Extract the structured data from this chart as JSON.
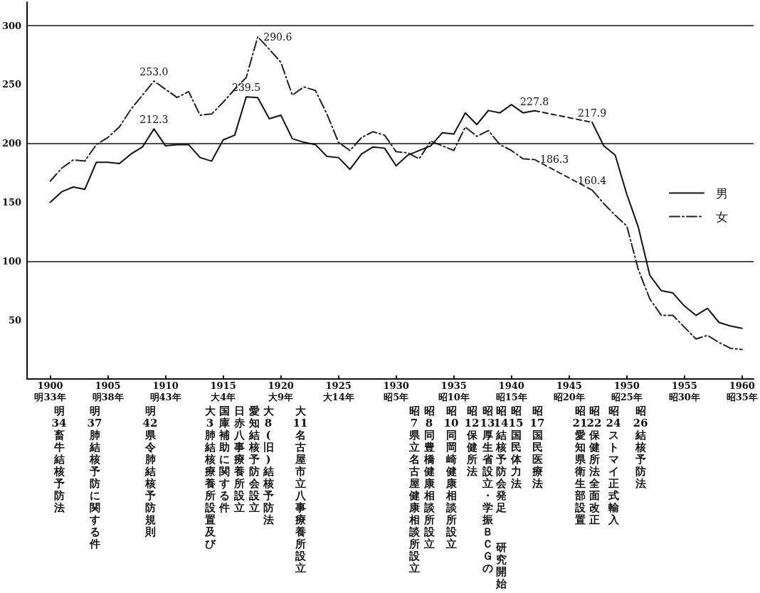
{
  "chart_data": {
    "type": "line",
    "x": [
      1900,
      1901,
      1902,
      1903,
      1904,
      1905,
      1906,
      1907,
      1908,
      1909,
      1910,
      1911,
      1912,
      1913,
      1914,
      1915,
      1916,
      1917,
      1918,
      1919,
      1920,
      1921,
      1922,
      1923,
      1924,
      1925,
      1926,
      1927,
      1928,
      1929,
      1930,
      1931,
      1932,
      1933,
      1934,
      1935,
      1936,
      1937,
      1938,
      1939,
      1940,
      1941,
      1942,
      1943,
      1944,
      1945,
      1946,
      1947,
      1948,
      1949,
      1950,
      1951,
      1952,
      1953,
      1954,
      1955,
      1956,
      1957,
      1958,
      1959,
      1960
    ],
    "series": [
      {
        "name": "男",
        "color": "#111111",
        "line_style": "solid",
        "values": [
          150,
          159,
          163,
          161,
          184,
          184,
          183,
          191,
          197,
          212.3,
          198,
          199,
          199,
          188,
          185,
          203,
          207,
          239.5,
          239,
          221,
          224,
          204,
          201,
          199,
          189,
          188,
          178,
          191,
          197,
          196,
          181,
          190,
          194,
          198,
          209,
          208,
          226,
          216,
          228,
          226,
          233,
          226,
          227.8,
          null,
          null,
          null,
          null,
          217.9,
          198,
          190,
          157,
          129,
          88,
          75,
          73,
          62,
          54,
          60,
          48,
          45,
          43
        ],
        "value_labels": [
          null,
          null,
          null,
          null,
          null,
          null,
          null,
          null,
          null,
          "212.3",
          null,
          null,
          null,
          null,
          null,
          null,
          null,
          "239.5",
          null,
          null,
          null,
          null,
          null,
          null,
          null,
          null,
          null,
          null,
          null,
          null,
          null,
          null,
          null,
          null,
          null,
          null,
          null,
          null,
          null,
          null,
          null,
          null,
          "227.8",
          null,
          null,
          null,
          null,
          "217.9",
          null,
          null,
          null,
          null,
          null,
          null,
          null,
          null,
          null,
          null,
          null,
          null,
          null
        ]
      },
      {
        "name": "女",
        "color": "#222222",
        "line_style": "dashdot",
        "values": [
          168,
          179,
          186,
          185,
          199,
          205,
          214,
          229,
          241,
          253,
          246,
          239,
          244,
          224,
          225,
          235,
          246,
          256,
          290.6,
          280,
          269,
          241,
          248,
          245,
          225,
          201,
          194,
          205,
          210,
          207,
          193,
          192,
          187,
          202,
          198,
          194,
          214,
          206,
          211,
          199,
          194,
          187,
          186.3,
          null,
          null,
          null,
          null,
          160.4,
          149,
          139,
          130,
          93,
          68,
          54,
          54,
          44,
          34,
          37,
          31,
          26,
          25
        ],
        "value_labels": [
          null,
          null,
          null,
          null,
          null,
          null,
          null,
          null,
          null,
          "253.0",
          null,
          null,
          null,
          null,
          null,
          null,
          null,
          null,
          "290.6",
          null,
          null,
          null,
          null,
          null,
          null,
          null,
          null,
          null,
          null,
          null,
          null,
          null,
          null,
          null,
          null,
          null,
          null,
          null,
          null,
          null,
          null,
          null,
          "186.3",
          null,
          null,
          null,
          null,
          "160.4",
          null,
          null,
          null,
          null,
          null,
          null,
          null,
          null,
          null,
          null,
          null,
          null,
          null
        ]
      },
      {
        "color": "#181818",
        "line_style": "dashed",
        "values": [
          null,
          null,
          null,
          null,
          null,
          null,
          null,
          null,
          null,
          null,
          null,
          null,
          null,
          null,
          null,
          null,
          null,
          null,
          null,
          null,
          null,
          null,
          null,
          null,
          null,
          null,
          null,
          null,
          null,
          null,
          null,
          null,
          null,
          null,
          null,
          null,
          null,
          null,
          null,
          null,
          null,
          null,
          227.8,
          null,
          null,
          null,
          null,
          217.9,
          null,
          null,
          null,
          null,
          null,
          null,
          null,
          null,
          null,
          null,
          null,
          null,
          null
        ]
      },
      {
        "color": "#2a2a2a",
        "line_style": "dashed",
        "values": [
          null,
          null,
          null,
          null,
          null,
          null,
          null,
          null,
          null,
          null,
          null,
          null,
          null,
          null,
          null,
          null,
          null,
          null,
          null,
          null,
          null,
          null,
          null,
          null,
          null,
          null,
          null,
          null,
          null,
          null,
          null,
          null,
          null,
          null,
          null,
          null,
          null,
          null,
          null,
          null,
          null,
          null,
          186.3,
          null,
          null,
          null,
          null,
          160.4,
          null,
          null,
          null,
          null,
          null,
          null,
          null,
          null,
          null,
          null,
          null,
          null,
          null
        ]
      }
    ],
    "xlim": [
      1898,
      1961
    ],
    "xticks": [
      1900,
      1905,
      1910,
      1915,
      1920,
      1925,
      1930,
      1935,
      1940,
      1945,
      1950,
      1955,
      1960
    ],
    "ylim": [
      0,
      320
    ],
    "yticks": [
      50,
      100,
      150,
      200,
      250,
      300
    ],
    "grid": false,
    "legend": "right",
    "marker": "none",
    "ref_lines": [
      {
        "axis": "y",
        "value": 100,
        "label": null
      },
      {
        "axis": "y",
        "value": 200,
        "label": null
      },
      {
        "axis": "y",
        "value": 300,
        "label": null
      }
    ],
    "annotations": [
      "明33年",
      "明38年",
      "明43年",
      "大4年",
      "大9年",
      "大14年",
      "昭5年",
      "昭10年",
      "昭15年",
      "昭20年",
      "昭25年",
      "昭30年",
      "昭35年",
      "明34畜牛結核予防法",
      "明37肺結核予防に関する件",
      "明42県令肺結核予防規則",
      "大3肺結核療養所設置及び",
      "国庫補助に関する件",
      "日赤八事療養所設立",
      "愛知結核予防会設立",
      "大8(旧)結核予防法",
      "大11名古屋市立八事療養所設立",
      "昭7県立名古屋健康相談所設立",
      "昭8同豊橋健康相談所設立",
      "昭10同岡崎健康相談所設立",
      "昭12保健所法",
      "昭13厚生省設立・学振ＢＣＧの",
      "研究開始",
      "昭14結核予防会発足",
      "昭15国民体力法",
      "昭17国民医療法",
      "昭21愛知県衛生部設置",
      "昭22保健所法全面改正",
      "昭24ストマイ正式輸入",
      "昭26結核予防法"
    ]
  }
}
